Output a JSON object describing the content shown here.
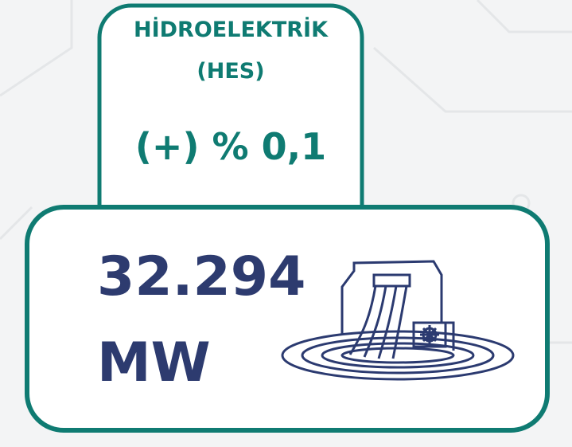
{
  "top_card": {
    "title": "HİDROELEKTRİK",
    "subtitle": "(HES)",
    "change": "(+) % 0,1"
  },
  "bottom_card": {
    "value": "32.294",
    "unit": "MW"
  }
}
